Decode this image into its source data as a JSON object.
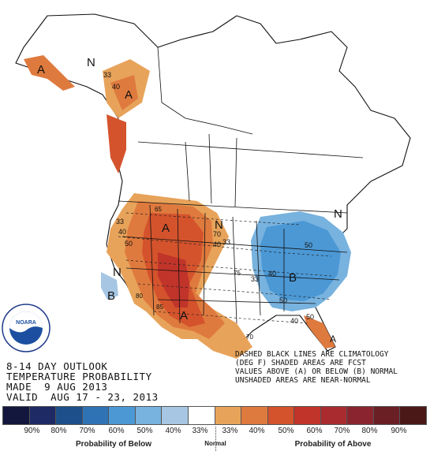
{
  "outlook": {
    "title_lines": "8-14 DAY OUTLOOK\nTEMPERATURE PROBABILITY\nMADE  9 AUG 2013\nVALID  AUG 17 - 23, 2013"
  },
  "legend_note": "DASHED BLACK LINES ARE CLIMATOLOGY\n(DEG F) SHADED AREAS ARE FCST\nVALUES ABOVE (A) OR BELOW (B) NORMAL\nUNSHADED AREAS ARE NEAR-NORMAL",
  "logo": {
    "text": "NOARA",
    "caption": "NATIONAL OCEANIC AND ATMOSPHERIC ADMINISTRATION",
    "icon": "noaa-logo-icon"
  },
  "map_labels": {
    "n_alaska": "N",
    "a_alaska": "A",
    "c33_alaska": "33",
    "c40_alaska": "40",
    "a_west": "A",
    "a_southwest": "A",
    "a_florida": "A",
    "n_central": "N",
    "n_northeast": "N",
    "n_pacific": "N",
    "b_pacific": "B",
    "b_east": "B",
    "c33_west": "33",
    "c40_west": "40",
    "c50_west": "50",
    "c70_north": "70",
    "c40_central": "40",
    "c33_central": "33",
    "c40_east": "40",
    "c50_east": "50",
    "c50_se": "50",
    "c33_east": "33",
    "c40_florida": "40",
    "c50_florida": "50",
    "c65_ne": "65",
    "c75_sw": "75",
    "c80_sw": "80",
    "c85_sw": "85",
    "c70_gulf": "70"
  },
  "scale": {
    "colors": [
      "#13173d",
      "#1e2a63",
      "#1d4f8a",
      "#2f73b5",
      "#4b98d5",
      "#78b2de",
      "#a6c6e3",
      "#ffffff",
      "#e8a35a",
      "#df7a3e",
      "#d4532c",
      "#c1342a",
      "#a92b30",
      "#8a2530",
      "#6a1f25",
      "#4b1818"
    ],
    "percents": [
      "90%",
      "80%",
      "70%",
      "60%",
      "50%",
      "40%",
      "33%",
      "33%",
      "40%",
      "50%",
      "60%",
      "70%",
      "80%",
      "90%"
    ],
    "below_label": "Probability of Below",
    "normal_label": "Normal",
    "above_label": "Probability of Above"
  }
}
